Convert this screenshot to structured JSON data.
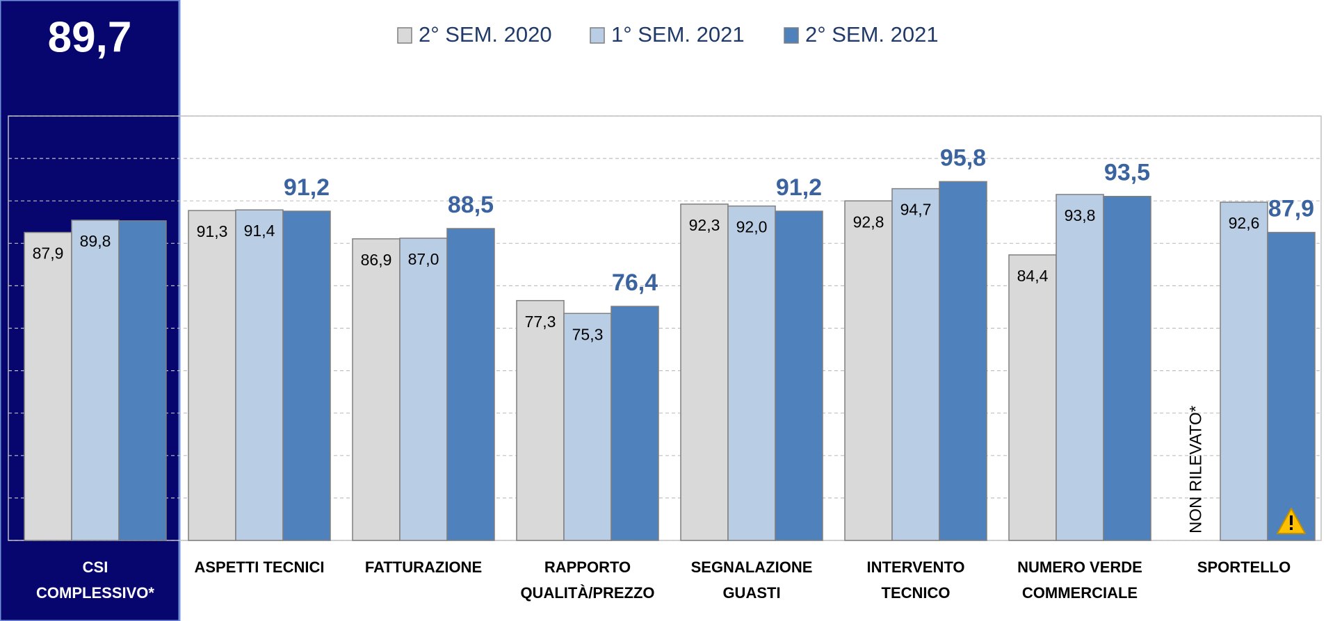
{
  "chart_data": {
    "type": "bar",
    "categories": [
      [
        "CSI",
        "COMPLESSIVO*"
      ],
      [
        "ASPETTI TECNICI"
      ],
      [
        "FATTURAZIONE"
      ],
      [
        "RAPPORTO",
        "QUALITÀ/PREZZO"
      ],
      [
        "SEGNALAZIONE",
        "GUASTI"
      ],
      [
        "INTERVENTO",
        "TECNICO"
      ],
      [
        "NUMERO VERDE",
        "COMMERCIALE"
      ],
      [
        "SPORTELLO"
      ]
    ],
    "series": [
      {
        "name": "2° SEM. 2020",
        "color": "#d9d9d9",
        "values": [
          87.9,
          91.3,
          86.9,
          77.3,
          92.3,
          92.8,
          84.4,
          null
        ],
        "value_labels": [
          "87,9",
          "91,3",
          "86,9",
          "77,3",
          "92,3",
          "92,8",
          "84,4",
          null
        ]
      },
      {
        "name": "1° SEM. 2021",
        "color": "#b9cde5",
        "values": [
          89.8,
          91.4,
          87.0,
          75.3,
          92.0,
          94.7,
          93.8,
          92.6
        ],
        "value_labels": [
          "89,8",
          "91,4",
          "87,0",
          "75,3",
          "92,0",
          "94,7",
          "93,8",
          "92,6"
        ]
      },
      {
        "name": "2° SEM. 2021",
        "color": "#4f81bd",
        "values": [
          89.7,
          91.2,
          88.5,
          76.4,
          91.2,
          95.8,
          93.5,
          87.9
        ],
        "value_labels": [
          "89,7",
          "91,2",
          "88,5",
          "76,4",
          "91,2",
          "95,8",
          "93,5",
          "87,9"
        ]
      }
    ],
    "annotation": "NON RILEVATO*",
    "ylim": [
      40,
      106
    ],
    "yticks": [
      40,
      46.6,
      53.2,
      59.8,
      66.4,
      73,
      79.6,
      86.2,
      92.8,
      99.4,
      106
    ],
    "grid": true
  }
}
